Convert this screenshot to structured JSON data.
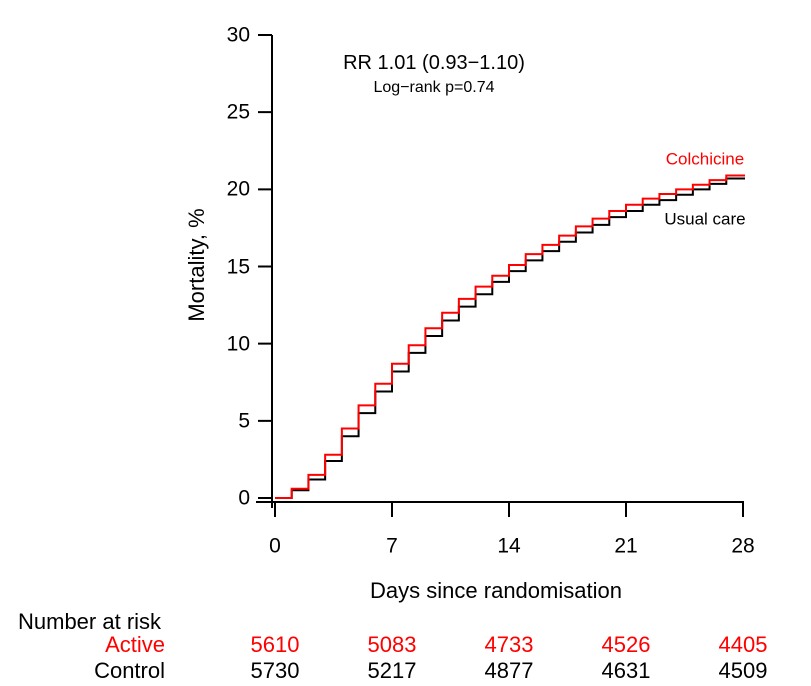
{
  "figure": {
    "annotation": {
      "rr": "RR 1.01 (0.93−1.10)",
      "logrank": "Log−rank p=0.74"
    },
    "curve_labels": {
      "colchicine": "Colchicine",
      "usual_care": "Usual care"
    },
    "y_title": "Mortality, %",
    "x_title": "Days since randomisation",
    "colors": {
      "colchicine": "#ff0000",
      "usual_care": "#000000",
      "axis": "#000000"
    },
    "risk_table": {
      "title": "Number at risk",
      "rows": [
        {
          "label": "Active",
          "color": "#ff0000",
          "values": [
            "5610",
            "5083",
            "4733",
            "4526",
            "4405"
          ]
        },
        {
          "label": "Control",
          "color": "#000000",
          "values": [
            "5730",
            "5217",
            "4877",
            "4631",
            "4509"
          ]
        }
      ]
    }
  },
  "chart_data": {
    "type": "line",
    "step": true,
    "title": "",
    "xlabel": "Days since randomisation",
    "ylabel": "Mortality, %",
    "xlim": [
      0,
      28
    ],
    "ylim": [
      0,
      30
    ],
    "x_ticks": [
      0,
      7,
      14,
      21,
      28
    ],
    "y_ticks": [
      0,
      5,
      10,
      15,
      20,
      25,
      30
    ],
    "grid": false,
    "legend_position": "inline-right",
    "annotations": [
      "RR 1.01 (0.93−1.10)",
      "Log−rank p=0.74"
    ],
    "x": [
      0,
      1,
      2,
      3,
      4,
      5,
      6,
      7,
      8,
      9,
      10,
      11,
      12,
      13,
      14,
      15,
      16,
      17,
      18,
      19,
      20,
      21,
      22,
      23,
      24,
      25,
      26,
      27,
      28
    ],
    "series": [
      {
        "name": "Colchicine",
        "color": "#ff0000",
        "values": [
          0,
          0.6,
          1.5,
          2.8,
          4.5,
          6.0,
          7.4,
          8.7,
          9.9,
          11.0,
          12.0,
          12.9,
          13.7,
          14.4,
          15.1,
          15.8,
          16.4,
          17.0,
          17.6,
          18.1,
          18.6,
          19.0,
          19.4,
          19.7,
          20.0,
          20.3,
          20.6,
          20.9,
          20.9
        ]
      },
      {
        "name": "Usual care",
        "color": "#000000",
        "values": [
          0,
          0.5,
          1.2,
          2.4,
          4.0,
          5.5,
          6.9,
          8.2,
          9.4,
          10.5,
          11.5,
          12.4,
          13.2,
          14.0,
          14.7,
          15.4,
          16.0,
          16.6,
          17.2,
          17.7,
          18.2,
          18.6,
          19.0,
          19.3,
          19.65,
          20.0,
          20.35,
          20.7,
          20.7
        ]
      }
    ],
    "risk_table": {
      "times": [
        0,
        7,
        14,
        21,
        28
      ],
      "Active": [
        5610,
        5083,
        4733,
        4526,
        4405
      ],
      "Control": [
        5730,
        5217,
        4877,
        4631,
        4509
      ]
    }
  }
}
